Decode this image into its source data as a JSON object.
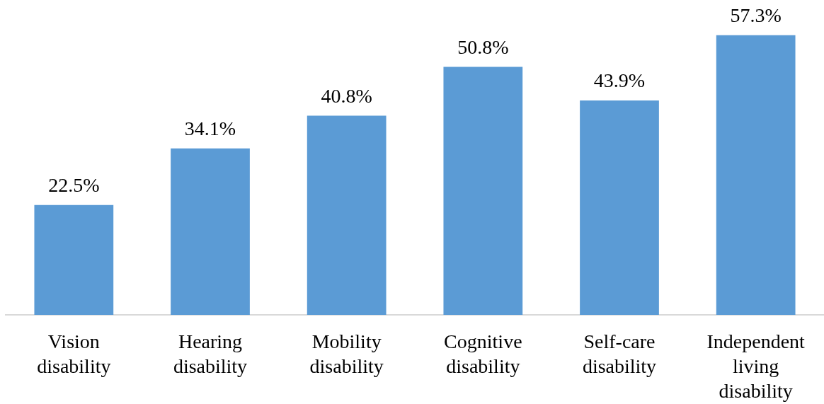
{
  "chart_data": {
    "type": "bar",
    "categories": [
      "Vision disability",
      "Hearing disability",
      "Mobility disability",
      "Cognitive disability",
      "Self-care disability",
      "Independent living disability"
    ],
    "values": [
      22.5,
      34.1,
      40.8,
      50.8,
      43.9,
      57.3
    ],
    "value_labels": [
      "22.5%",
      "34.1%",
      "40.8%",
      "50.8%",
      "43.9%",
      "57.3%"
    ],
    "color": "#5b9bd5",
    "tick_labels": "x"
  }
}
